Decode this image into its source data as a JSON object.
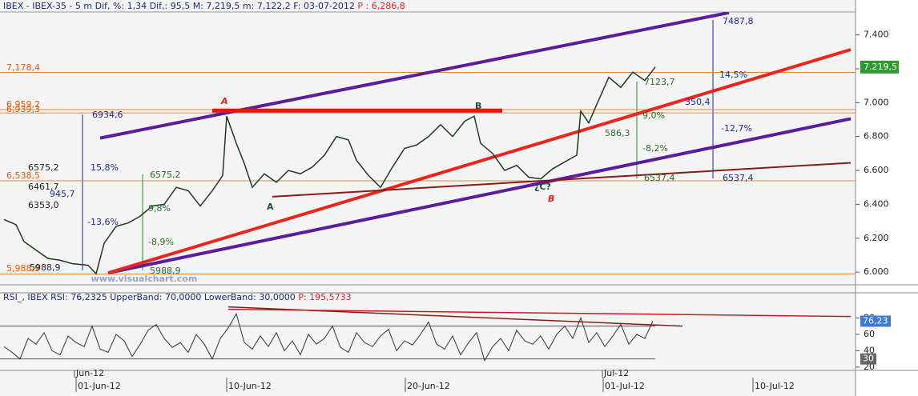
{
  "chart_data": {
    "type": "line",
    "header": "IBEX - IBEX-35 -  5 m Dif, %: 1,34 Dif,: 95,5 M: 7,219,5 m: 7,122,2 F: 03-07-2012",
    "header_p": "P : 6,286,8",
    "watermark": "www.visualchart.com",
    "last_price": "7.219,5",
    "xlim": [
      0,
      534
    ],
    "xticks": [
      {
        "value": 47.5,
        "label": "01-Jun-12"
      },
      {
        "value": 141.5,
        "label": "10-Jun-12"
      },
      {
        "value": 253,
        "label": "20-Jun-12"
      },
      {
        "value": 376.5,
        "label": "01-Jul-12"
      },
      {
        "value": 470,
        "label": "10-Jul-12"
      }
    ],
    "month_ticks": [
      {
        "value": 46.5,
        "label": "Jun-12"
      },
      {
        "value": 376,
        "label": "Jul-12"
      }
    ],
    "ylim": [
      5925,
      7535
    ],
    "yticks": [
      {
        "value": 6000,
        "label": "6.000"
      },
      {
        "value": 6200,
        "label": "6.200"
      },
      {
        "value": 6400,
        "label": "6.400"
      },
      {
        "value": 6600,
        "label": "6.600"
      },
      {
        "value": 6800,
        "label": "6.800"
      },
      {
        "value": 7000,
        "label": "7.000"
      },
      {
        "value": 7200,
        "label": "7.200"
      },
      {
        "value": 7400,
        "label": "7.400"
      }
    ],
    "series": [
      {
        "name": "IBEX-35",
        "color": "#1f3b1f",
        "x": [
          2.5,
          10,
          15,
          22.5,
          30,
          37.5,
          45,
          55,
          60,
          65,
          72.5,
          80,
          87.5,
          95,
          102.5,
          110,
          117.5,
          125,
          132.5,
          139,
          141.5,
          147.5,
          152.5,
          157.5,
          165,
          172.5,
          180,
          187.5,
          195,
          202.5,
          210,
          217.5,
          222.5,
          230,
          237.5,
          245,
          252.5,
          260,
          267.5,
          275,
          282.5,
          290,
          296,
          300,
          307.5,
          315,
          322.5,
          330,
          337.5,
          345,
          352.5,
          360,
          362.5,
          367.5,
          372.5,
          380,
          387.5,
          395,
          402.5,
          409
        ],
        "values": [
          6310,
          6280,
          6180,
          6130,
          6080,
          6070,
          6050,
          6040,
          5990,
          6170,
          6270,
          6290,
          6330,
          6390,
          6400,
          6500,
          6480,
          6390,
          6480,
          6570,
          6920,
          6760,
          6640,
          6500,
          6580,
          6530,
          6600,
          6580,
          6620,
          6690,
          6800,
          6780,
          6660,
          6570,
          6500,
          6620,
          6730,
          6750,
          6800,
          6870,
          6800,
          6890,
          6920,
          6760,
          6700,
          6600,
          6630,
          6560,
          6550,
          6610,
          6650,
          6690,
          6950,
          6880,
          6990,
          7150,
          7090,
          7180,
          7130,
          7210
        ]
      }
    ],
    "levels": [
      {
        "value": 7178.4,
        "label": "7,178,4"
      },
      {
        "value": 6959.2,
        "label": "6,959,2"
      },
      {
        "value": 6939.3,
        "label": "6,939,3"
      },
      {
        "value": 6538.5,
        "label": "6,538,5"
      },
      {
        "value": 5988.9,
        "label": "5,988,9"
      }
    ],
    "trendlines": [
      {
        "color": "#5a1e9c",
        "x": [
          62.5,
          455
        ],
        "y": [
          6791,
          7531
        ]
      },
      {
        "color": "#5a1e9c",
        "x": [
          67.5,
          531
        ],
        "y": [
          5995,
          6905
        ]
      },
      {
        "color": "#e8261e",
        "x": [
          67.5,
          531
        ],
        "y": [
          5995,
          7313
        ]
      },
      {
        "color": "#e01a10",
        "x": [
          132.5,
          313.5
        ],
        "y": [
          6953,
          6953
        ]
      },
      {
        "color": "#8b1a1a",
        "x": [
          170,
          531
        ],
        "y": [
          6445,
          6645
        ]
      }
    ],
    "annotations": [
      "6934,6",
      "15,8%",
      "-13,6%",
      "6575,2",
      "6461,7",
      "945,7",
      "6353,0",
      "5988,9",
      "6575,2",
      "9,8%",
      "-8,9%",
      "5988,9",
      "7487,8",
      "14,5%",
      "7123,7",
      "350,4",
      "9,0%",
      "-12,7%",
      "586,3",
      "-8,2%",
      "6537,4",
      "6537,4",
      "A",
      "B",
      "A",
      "¿C?",
      "B"
    ],
    "rsi": {
      "header": "RSI_, IBEX RSI: 76,2325 UpperBand: 70,0000 LowerBand: 30,0000",
      "header_p": "P: 195,5733",
      "last": "76,23",
      "low_label": "30",
      "ylim": [
        16,
        96
      ],
      "yticks": [
        20,
        40,
        60,
        80
      ],
      "upper_band": 70,
      "lower_band": 30,
      "color": "#333333",
      "x": [
        2.5,
        7.5,
        12.5,
        17.5,
        22.5,
        27.5,
        32.5,
        37.5,
        42.5,
        47.5,
        52.5,
        57.5,
        62.5,
        67.5,
        72.5,
        77.5,
        82.5,
        87.5,
        92.5,
        97.5,
        102.5,
        107.5,
        112.5,
        117.5,
        122.5,
        127.5,
        132.5,
        137.5,
        142.5,
        147.5,
        152.5,
        157.5,
        162.5,
        167.5,
        172.5,
        177.5,
        182.5,
        187.5,
        192.5,
        197.5,
        202.5,
        207.5,
        212.5,
        217.5,
        222.5,
        227.5,
        232.5,
        237.5,
        242.5,
        247.5,
        252.5,
        257.5,
        262.5,
        267.5,
        272.5,
        277.5,
        282.5,
        287.5,
        292.5,
        297.5,
        302.5,
        307.5,
        312.5,
        317.5,
        322.5,
        327.5,
        332.5,
        337.5,
        342.5,
        347.5,
        352.5,
        357.5,
        362.5,
        367.5,
        372.5,
        377.5,
        382.5,
        387.5,
        392.5,
        397.5,
        402.5,
        407.5
      ],
      "values": [
        45,
        38,
        30,
        55,
        48,
        62,
        40,
        35,
        58,
        50,
        45,
        70,
        42,
        38,
        60,
        52,
        33,
        48,
        65,
        72,
        55,
        44,
        50,
        38,
        60,
        48,
        30,
        55,
        68,
        85,
        50,
        42,
        58,
        45,
        62,
        40,
        52,
        35,
        60,
        48,
        55,
        70,
        44,
        38,
        62,
        50,
        45,
        58,
        66,
        40,
        52,
        47,
        60,
        75,
        48,
        42,
        58,
        35,
        50,
        62,
        28,
        45,
        55,
        40,
        65,
        52,
        48,
        58,
        42,
        60,
        70,
        55,
        80,
        50,
        62,
        45,
        58,
        72,
        48,
        60,
        55,
        76
      ],
      "trendlines": [
        {
          "color": "#8b1a1a",
          "x": [
            142.5,
            426
          ],
          "y": [
            93.4,
            70
          ]
        },
        {
          "color": "#d01818",
          "x": [
            142.5,
            531
          ],
          "y": [
            90.5,
            81.7
          ]
        }
      ]
    }
  }
}
